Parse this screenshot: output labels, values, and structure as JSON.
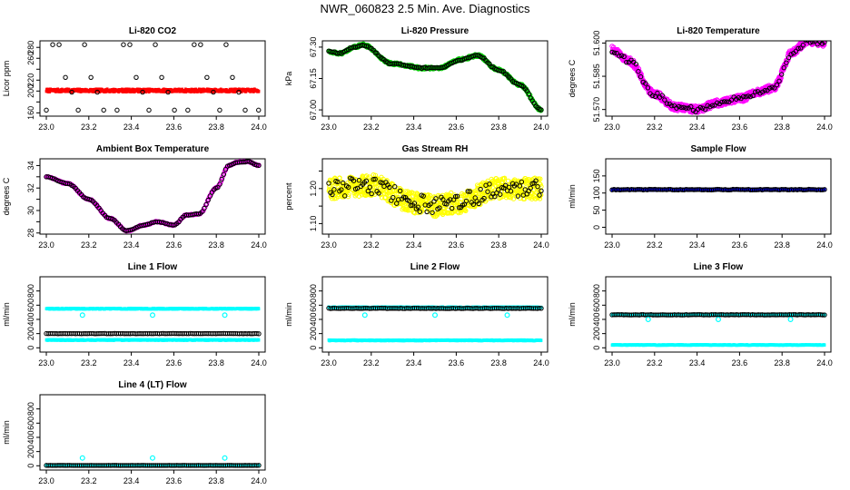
{
  "figure_title": "NWR_060823  2.5 Min. Ave. Diagnostics",
  "colors": {
    "red": "#ff0000",
    "green": "#00cc00",
    "magenta": "#ff00ff",
    "yellow": "#ffff00",
    "blue": "#0000ff",
    "cyan": "#00ffff",
    "black": "#000000"
  },
  "chart_data": [
    {
      "id": "co2",
      "type": "scatter",
      "title": "Li-820 CO2",
      "ylabel": "Licor ppm",
      "xlim": [
        22.97,
        24.03
      ],
      "ylim": [
        154,
        292
      ],
      "xticks": [
        23.0,
        23.2,
        23.4,
        23.6,
        23.8,
        24.0
      ],
      "xtick_labels": [
        "23.0",
        "23.2",
        "23.4",
        "23.6",
        "23.8",
        "24.0"
      ],
      "yticks": [
        160,
        180,
        200,
        220,
        240,
        260,
        280
      ],
      "ytick_labels": [
        "160",
        "",
        "200",
        "220",
        "",
        "260",
        "280"
      ],
      "series": [
        {
          "name": "co2 ambient",
          "style": "dense",
          "color": "red",
          "x_range": [
            23.0,
            24.0
          ],
          "base": 201,
          "noise": 2.5,
          "n": 500
        },
        {
          "name": "co2 standards",
          "style": "ring",
          "color": "black",
          "cycle_start": 23.0,
          "cycle_period": 0.333,
          "offsets": [
            0.0,
            0.03,
            0.06,
            0.09,
            0.12,
            0.15,
            0.18,
            0.21,
            0.24,
            0.27
          ],
          "levels": [
            165,
            285,
            285,
            225,
            198,
            165,
            285,
            225,
            198,
            165
          ]
        }
      ]
    },
    {
      "id": "pressure",
      "type": "line",
      "title": "Li-820 Pressure",
      "ylabel": "kPa",
      "xlim": [
        22.97,
        24.03
      ],
      "ylim": [
        66.97,
        67.33
      ],
      "xticks": [
        23.0,
        23.2,
        23.4,
        23.6,
        23.8,
        24.0
      ],
      "xtick_labels": [
        "23.0",
        "23.2",
        "23.4",
        "23.6",
        "23.8",
        "24.0"
      ],
      "yticks": [
        67.0,
        67.15,
        67.3
      ],
      "ytick_labels": [
        "67.00",
        "67.15",
        "67.30"
      ],
      "knots_x": [
        23.0,
        23.05,
        23.12,
        23.16,
        23.3,
        23.45,
        23.52,
        23.62,
        23.7,
        23.8,
        23.9,
        24.0
      ],
      "knots_y": [
        67.28,
        67.27,
        67.3,
        67.31,
        67.22,
        67.2,
        67.2,
        67.24,
        67.26,
        67.19,
        67.12,
        67.0
      ],
      "series": [
        {
          "name": "pressure",
          "style": "ring",
          "color": "green",
          "n": 400,
          "noise": 0.006
        },
        {
          "name": "pressure avg",
          "style": "ring",
          "color": "black",
          "n": 120,
          "noise": 0.003
        }
      ]
    },
    {
      "id": "licor_temp",
      "type": "line",
      "title": "Li-820 Temperature",
      "ylabel": "degrees C",
      "xlim": [
        22.97,
        24.03
      ],
      "ylim": [
        51.567,
        51.601
      ],
      "xticks": [
        23.0,
        23.2,
        23.4,
        23.6,
        23.8,
        24.0
      ],
      "xtick_labels": [
        "23.0",
        "23.2",
        "23.4",
        "23.6",
        "23.8",
        "24.0"
      ],
      "yticks": [
        51.57,
        51.585,
        51.6
      ],
      "ytick_labels": [
        "51.570",
        "51.585",
        "51.600"
      ],
      "knots_x": [
        23.0,
        23.08,
        23.2,
        23.3,
        23.4,
        23.5,
        23.6,
        23.7,
        23.76,
        23.85,
        23.92,
        24.0
      ],
      "knots_y": [
        51.597,
        51.592,
        51.577,
        51.571,
        51.57,
        51.573,
        51.575,
        51.578,
        51.58,
        51.596,
        51.601,
        51.6
      ],
      "series": [
        {
          "name": "licor temp",
          "style": "ring",
          "color": "magenta",
          "n": 700,
          "noise": 0.0016
        },
        {
          "name": "licor temp avg",
          "style": "ring",
          "color": "black",
          "n": 90,
          "noise": 0.0012
        }
      ]
    },
    {
      "id": "box_temp",
      "type": "line",
      "title": "Ambient Box Temperature",
      "ylabel": "degrees C",
      "xlim": [
        22.97,
        24.03
      ],
      "ylim": [
        27.9,
        34.6
      ],
      "xticks": [
        23.0,
        23.2,
        23.4,
        23.6,
        23.8,
        24.0
      ],
      "xtick_labels": [
        "23.0",
        "23.2",
        "23.4",
        "23.6",
        "23.8",
        "24.0"
      ],
      "yticks": [
        28,
        29,
        30,
        31,
        32,
        33,
        34
      ],
      "ytick_labels": [
        "28",
        "",
        "30",
        "",
        "32",
        "",
        "34"
      ],
      "knots_x": [
        23.0,
        23.1,
        23.2,
        23.3,
        23.38,
        23.46,
        23.52,
        23.6,
        23.66,
        23.72,
        23.8,
        23.86,
        23.9,
        23.95,
        24.0
      ],
      "knots_y": [
        33.0,
        32.4,
        31.0,
        29.3,
        28.2,
        28.7,
        29.0,
        28.7,
        29.6,
        29.7,
        32.0,
        34.0,
        34.3,
        34.35,
        34.0
      ],
      "series": [
        {
          "name": "box temp",
          "style": "ring",
          "color": "magenta",
          "n": 250,
          "noise": 0.05
        },
        {
          "name": "box temp avg",
          "style": "ring",
          "color": "black",
          "n": 110,
          "noise": 0.03
        }
      ]
    },
    {
      "id": "rh",
      "type": "scatter",
      "title": "Gas Stream RH",
      "ylabel": "percent",
      "xlim": [
        22.97,
        24.03
      ],
      "ylim": [
        1.07,
        1.285
      ],
      "xticks": [
        23.0,
        23.2,
        23.4,
        23.6,
        23.8,
        24.0
      ],
      "xtick_labels": [
        "23.0",
        "23.2",
        "23.4",
        "23.6",
        "23.8",
        "24.0"
      ],
      "yticks": [
        1.1,
        1.15,
        1.2,
        1.25
      ],
      "ytick_labels": [
        "1.10",
        "",
        "1.20",
        ""
      ],
      "knots_x": [
        23.0,
        23.2,
        23.4,
        23.5,
        23.6,
        23.8,
        24.0
      ],
      "knots_y": [
        1.2,
        1.21,
        1.16,
        1.15,
        1.16,
        1.2,
        1.2
      ],
      "series": [
        {
          "name": "rh",
          "style": "ring",
          "color": "yellow",
          "n": 800,
          "noise": 0.03
        },
        {
          "name": "rh avg",
          "style": "ring",
          "color": "black",
          "n": 120,
          "noise": 0.025
        }
      ]
    },
    {
      "id": "sample_flow",
      "type": "line",
      "title": "Sample Flow",
      "ylabel": "ml/min",
      "xlim": [
        22.97,
        24.03
      ],
      "ylim": [
        -20,
        200
      ],
      "xticks": [
        23.0,
        23.2,
        23.4,
        23.6,
        23.8,
        24.0
      ],
      "xtick_labels": [
        "23.0",
        "23.2",
        "23.4",
        "23.6",
        "23.8",
        "24.0"
      ],
      "yticks": [
        0,
        50,
        100,
        150
      ],
      "ytick_labels": [
        "0",
        "50",
        "100",
        "150"
      ],
      "series": [
        {
          "name": "sample flow",
          "style": "dense",
          "color": "blue",
          "x_range": [
            23.0,
            24.0
          ],
          "base": 110,
          "noise": 1.5,
          "n": 500
        },
        {
          "name": "sample flow avg",
          "style": "ring",
          "color": "black",
          "x_range": [
            23.0,
            24.0
          ],
          "base": 110,
          "noise": 1.0,
          "n": 110
        }
      ]
    },
    {
      "id": "line1",
      "type": "line",
      "title": "Line 1 Flow",
      "ylabel": "ml/min",
      "xlim": [
        22.97,
        24.03
      ],
      "ylim": [
        -60,
        1000
      ],
      "xticks": [
        23.0,
        23.2,
        23.4,
        23.6,
        23.8,
        24.0
      ],
      "xtick_labels": [
        "23.0",
        "23.2",
        "23.4",
        "23.6",
        "23.8",
        "24.0"
      ],
      "yticks": [
        0,
        200,
        400,
        600,
        800
      ],
      "ytick_labels": [
        "0",
        "200",
        "400",
        "600",
        "800"
      ],
      "series": [
        {
          "name": "line1 high",
          "style": "dense",
          "color": "cyan",
          "x_range": [
            23.0,
            24.0
          ],
          "base": 550,
          "noise": 6,
          "n": 400
        },
        {
          "name": "line1 low",
          "style": "dense",
          "color": "cyan",
          "x_range": [
            23.0,
            24.0
          ],
          "base": 110,
          "noise": 5,
          "n": 400
        },
        {
          "name": "line1 avg",
          "style": "ring",
          "color": "black",
          "x_range": [
            23.0,
            24.0
          ],
          "base": 200,
          "noise": 2,
          "n": 110
        }
      ],
      "outliers": {
        "color": "cyan",
        "y": 460,
        "x": [
          23.17,
          23.5,
          23.84
        ]
      }
    },
    {
      "id": "line2",
      "type": "line",
      "title": "Line 2 Flow",
      "ylabel": "ml/min",
      "xlim": [
        22.97,
        24.03
      ],
      "ylim": [
        -60,
        1000
      ],
      "xticks": [
        23.0,
        23.2,
        23.4,
        23.6,
        23.8,
        24.0
      ],
      "xtick_labels": [
        "23.0",
        "23.2",
        "23.4",
        "23.6",
        "23.8",
        "24.0"
      ],
      "yticks": [
        0,
        200,
        400,
        600,
        800
      ],
      "ytick_labels": [
        "0",
        "200",
        "400",
        "600",
        "800"
      ],
      "series": [
        {
          "name": "line2 high",
          "style": "dense",
          "color": "cyan",
          "x_range": [
            23.0,
            24.0
          ],
          "base": 570,
          "noise": 6,
          "n": 400
        },
        {
          "name": "line2 low",
          "style": "dense",
          "color": "cyan",
          "x_range": [
            23.0,
            24.0
          ],
          "base": 105,
          "noise": 5,
          "n": 400
        },
        {
          "name": "line2 avg",
          "style": "ring",
          "color": "black",
          "x_range": [
            23.0,
            24.0
          ],
          "base": 555,
          "noise": 3,
          "n": 110
        }
      ],
      "outliers": {
        "color": "cyan",
        "y": 460,
        "x": [
          23.17,
          23.5,
          23.84
        ]
      }
    },
    {
      "id": "line3",
      "type": "line",
      "title": "Line 3 Flow",
      "ylabel": "ml/min",
      "xlim": [
        22.97,
        24.03
      ],
      "ylim": [
        -60,
        1000
      ],
      "xticks": [
        23.0,
        23.2,
        23.4,
        23.6,
        23.8,
        24.0
      ],
      "xtick_labels": [
        "23.0",
        "23.2",
        "23.4",
        "23.6",
        "23.8",
        "24.0"
      ],
      "yticks": [
        0,
        200,
        400,
        600,
        800
      ],
      "ytick_labels": [
        "0",
        "200",
        "400",
        "600",
        "800"
      ],
      "series": [
        {
          "name": "line3 high",
          "style": "dense",
          "color": "cyan",
          "x_range": [
            23.0,
            24.0
          ],
          "base": 465,
          "noise": 4,
          "n": 400
        },
        {
          "name": "line3 low",
          "style": "dense",
          "color": "cyan",
          "x_range": [
            23.0,
            24.0
          ],
          "base": 40,
          "noise": 3,
          "n": 400
        },
        {
          "name": "line3 avg",
          "style": "ring",
          "color": "black",
          "x_range": [
            23.0,
            24.0
          ],
          "base": 465,
          "noise": 3,
          "n": 110
        }
      ],
      "outliers": {
        "color": "cyan",
        "y": 400,
        "x": [
          23.17,
          23.5,
          23.84
        ]
      }
    },
    {
      "id": "line4",
      "type": "line",
      "title": "Line 4 (LT) Flow",
      "ylabel": "ml/min",
      "xlim": [
        22.97,
        24.03
      ],
      "ylim": [
        -60,
        1000
      ],
      "xticks": [
        23.0,
        23.2,
        23.4,
        23.6,
        23.8,
        24.0
      ],
      "xtick_labels": [
        "23.0",
        "23.2",
        "23.4",
        "23.6",
        "23.8",
        "24.0"
      ],
      "yticks": [
        0,
        200,
        400,
        600,
        800
      ],
      "ytick_labels": [
        "0",
        "200",
        "400",
        "600",
        "800"
      ],
      "series": [
        {
          "name": "line4 flow",
          "style": "dense",
          "color": "cyan",
          "x_range": [
            23.0,
            24.0
          ],
          "base": 5,
          "noise": 2,
          "n": 300
        },
        {
          "name": "line4 avg",
          "style": "ring",
          "color": "black",
          "x_range": [
            23.0,
            24.0
          ],
          "base": 5,
          "noise": 1,
          "n": 110
        }
      ],
      "outliers": {
        "color": "cyan",
        "y": 110,
        "x": [
          23.17,
          23.5,
          23.84
        ]
      }
    }
  ]
}
